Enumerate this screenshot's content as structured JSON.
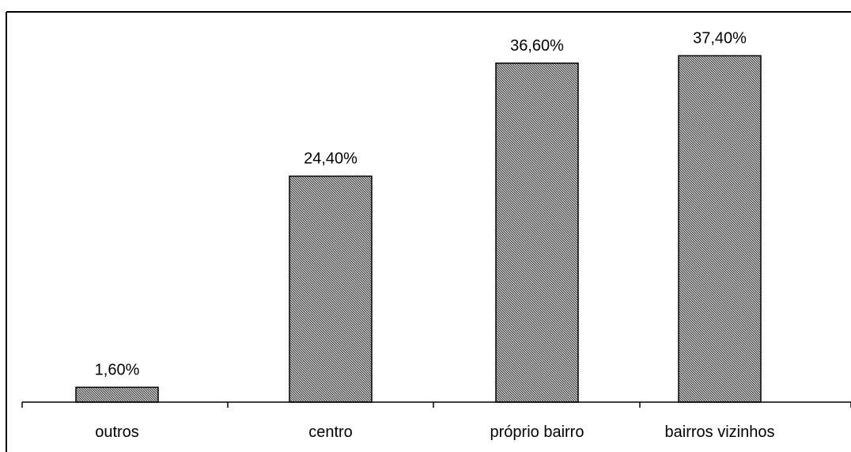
{
  "chart_data": {
    "type": "bar",
    "categories": [
      "outros",
      "centro",
      "próprio bairro",
      "bairros vizinhos"
    ],
    "values": [
      1.6,
      24.4,
      36.6,
      37.4
    ],
    "data_labels": [
      "1,60%",
      "24,40%",
      "36,60%",
      "37,40%"
    ],
    "ylim": [
      0,
      40
    ],
    "grid": false,
    "legend": "none",
    "bar_color": "#8c8c8c",
    "bar_border_color": "#000000"
  }
}
